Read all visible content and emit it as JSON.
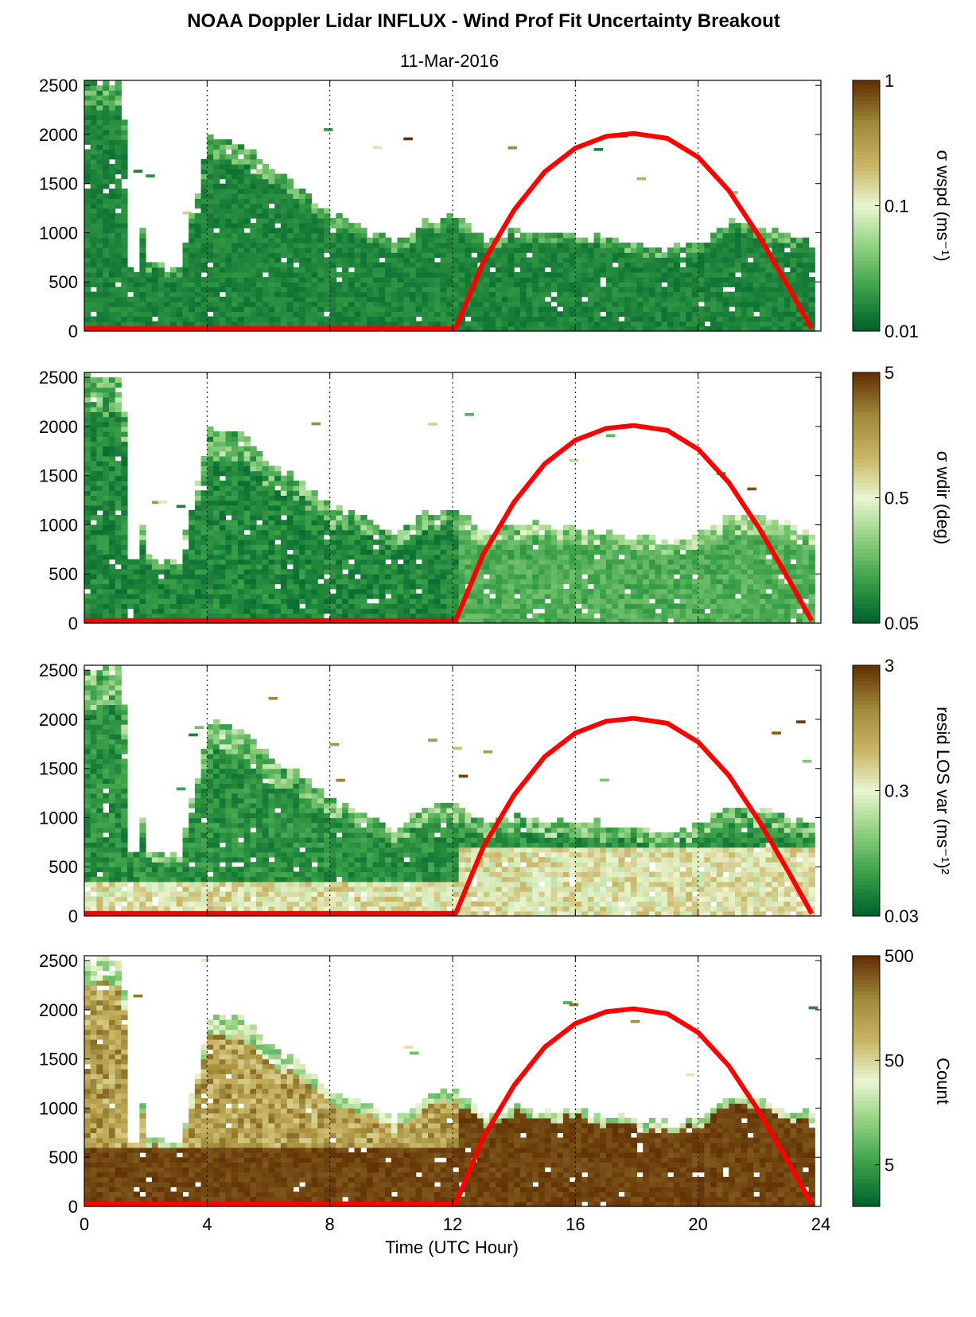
{
  "figure": {
    "title": "NOAA Doppler Lidar INFLUX - Wind Prof Fit Uncertainty Breakout",
    "subtitle": "11-Mar-2016"
  },
  "colors": {
    "dark_green": "#00632d",
    "mid_green": "#3aa048",
    "light_green": "#8fd080",
    "pale": "#eaf5d0",
    "tan": "#c8b464",
    "olive": "#a08a3a",
    "dark_brown": "#643205",
    "sun_curve": "#ff0000",
    "frame": "#000000"
  },
  "chart_data": [
    {
      "type": "heatmap",
      "panel": "wspd",
      "xlim": [
        0,
        24
      ],
      "ylim": [
        0,
        2550
      ],
      "xticks": [
        0,
        4,
        8,
        12,
        16,
        20,
        24
      ],
      "yticks": [
        0,
        500,
        1000,
        1500,
        2000,
        2500
      ],
      "grid": "vertical dotted at 4, 8, 12, 16, 20",
      "colorbar": {
        "label": "σ wspd (ms⁻¹)",
        "scale": "log",
        "range": [
          0.01,
          1
        ],
        "ticks": [
          "1",
          "0.1",
          "0.01"
        ]
      },
      "data_top_profile": {
        "x": [
          0,
          1,
          2,
          3,
          4,
          5,
          6,
          7,
          8,
          9,
          10,
          11,
          12,
          13,
          14,
          15,
          16,
          17,
          18,
          19,
          20,
          21,
          22,
          23,
          23.7
        ],
        "y": [
          2500,
          2500,
          650,
          600,
          1950,
          1900,
          1600,
          1400,
          1150,
          1050,
          850,
          1100,
          1150,
          900,
          1000,
          950,
          950,
          900,
          850,
          820,
          900,
          1100,
          1050,
          950,
          900
        ]
      },
      "dominant": "dark green (0.01–0.03) throughout boundary layer"
    },
    {
      "type": "heatmap",
      "panel": "wdir",
      "xlim": [
        0,
        24
      ],
      "ylim": [
        0,
        2550
      ],
      "xticks": [
        0,
        4,
        8,
        12,
        16,
        20,
        24
      ],
      "yticks": [
        0,
        500,
        1000,
        1500,
        2000,
        2500
      ],
      "grid": "vertical dotted at 4, 8, 12, 16, 20",
      "colorbar": {
        "label": "σ wdir (deg)",
        "scale": "log",
        "range": [
          0.05,
          5
        ],
        "ticks": [
          "5",
          "0.5",
          "0.05"
        ]
      },
      "data_top_profile": {
        "x": [
          0,
          1,
          2,
          3,
          4,
          5,
          6,
          7,
          8,
          9,
          10,
          11,
          12,
          13,
          14,
          15,
          16,
          17,
          18,
          19,
          20,
          21,
          22,
          23,
          23.7
        ],
        "y": [
          2500,
          2500,
          650,
          600,
          1950,
          1900,
          1600,
          1400,
          1150,
          1050,
          850,
          1100,
          1150,
          900,
          1000,
          950,
          950,
          900,
          850,
          820,
          900,
          1100,
          1050,
          950,
          900
        ]
      },
      "dominant": "dark green below 12 UTC, medium green after 12 UTC"
    },
    {
      "type": "heatmap",
      "panel": "resid_los_var",
      "xlim": [
        0,
        24
      ],
      "ylim": [
        0,
        2550
      ],
      "xticks": [
        0,
        4,
        8,
        12,
        16,
        20,
        24
      ],
      "yticks": [
        0,
        500,
        1000,
        1500,
        2000,
        2500
      ],
      "grid": "vertical dotted at 4, 8, 12, 16, 20",
      "colorbar": {
        "label": "resid LOS var (ms⁻¹)²",
        "scale": "log",
        "range": [
          0.03,
          3
        ],
        "ticks": [
          "3",
          "0.3",
          "0.03"
        ]
      },
      "data_top_profile": {
        "x": [
          0,
          1,
          2,
          3,
          4,
          5,
          6,
          7,
          8,
          9,
          10,
          11,
          12,
          13,
          14,
          15,
          16,
          17,
          18,
          19,
          20,
          21,
          22,
          23,
          23.7
        ],
        "y": [
          2500,
          2500,
          650,
          600,
          1950,
          1900,
          1600,
          1400,
          1150,
          1050,
          850,
          1100,
          1150,
          900,
          1000,
          950,
          950,
          900,
          850,
          820,
          900,
          1100,
          1050,
          950,
          900
        ]
      },
      "dominant": "pale green/tan near surface, dark green aloft; pale-tan mixed layer after 15 UTC"
    },
    {
      "type": "heatmap",
      "panel": "count",
      "xlim": [
        0,
        24
      ],
      "ylim": [
        0,
        2550
      ],
      "xticks": [
        0,
        4,
        8,
        12,
        16,
        20,
        24
      ],
      "yticks": [
        0,
        500,
        1000,
        1500,
        2000,
        2500
      ],
      "xlabel": "Time (UTC Hour)",
      "grid": "vertical dotted at 4, 8, 12, 16, 20",
      "colorbar": {
        "label": "Count",
        "scale": "log",
        "range": [
          2,
          500
        ],
        "ticks": [
          "500",
          "50",
          "5"
        ]
      },
      "data_top_profile": {
        "x": [
          0,
          1,
          2,
          3,
          4,
          5,
          6,
          7,
          8,
          9,
          10,
          11,
          12,
          13,
          14,
          15,
          16,
          17,
          18,
          19,
          20,
          21,
          22,
          23,
          23.7
        ],
        "y": [
          2500,
          2500,
          650,
          600,
          1950,
          1900,
          1600,
          1400,
          1150,
          1050,
          850,
          1100,
          1150,
          900,
          1000,
          950,
          950,
          900,
          850,
          820,
          900,
          1100,
          1050,
          950,
          900
        ]
      },
      "dominant": "dark brown (~500) in lower layers, olive/tan higher up"
    }
  ],
  "sun_elevation_overlay": {
    "color": "#ff0000",
    "x": [
      0,
      12.1,
      13,
      14,
      15,
      16,
      17,
      17.9,
      19,
      20,
      21,
      22,
      23,
      23.7
    ],
    "y": [
      25,
      25,
      700,
      1230,
      1620,
      1860,
      1980,
      2010,
      1960,
      1770,
      1430,
      960,
      420,
      25
    ]
  }
}
